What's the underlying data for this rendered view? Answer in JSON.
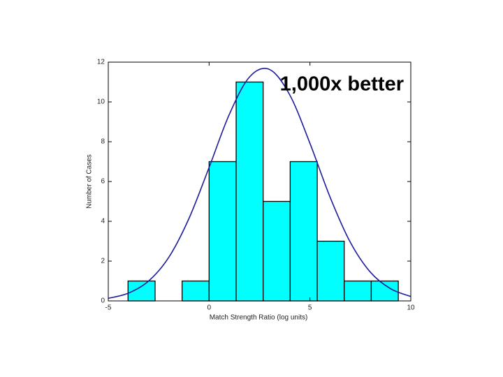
{
  "chart_data": {
    "type": "histogram",
    "xlabel": "Match Strength Ratio (log units)",
    "ylabel": "Number of Cases",
    "annotation": "1,000x better",
    "bins": [
      -4.02,
      -2.68,
      -1.34,
      0,
      1.34,
      2.68,
      4.02,
      5.36,
      6.7,
      8.04,
      9.38
    ],
    "counts": [
      1,
      0,
      1,
      7,
      11,
      5,
      7,
      3,
      1,
      1
    ],
    "color": "#00ffff",
    "curve": {
      "color": "#1c1c9c",
      "x": [
        -5,
        -4,
        -3,
        -2,
        -1,
        0,
        1,
        2,
        3,
        4,
        5,
        6,
        7,
        8,
        9,
        10
      ],
      "y": [
        0.13,
        0.39,
        1.0,
        2.19,
        4.14,
        6.71,
        9.37,
        11.25,
        11.63,
        10.35,
        7.92,
        5.21,
        2.95,
        1.44,
        0.61,
        0.22
      ]
    },
    "xlim": [
      -5,
      10
    ],
    "xticks": [
      -5,
      0,
      5,
      10
    ],
    "ylim": [
      0,
      12
    ],
    "yticks": [
      0,
      2,
      4,
      6,
      8,
      10,
      12
    ]
  }
}
